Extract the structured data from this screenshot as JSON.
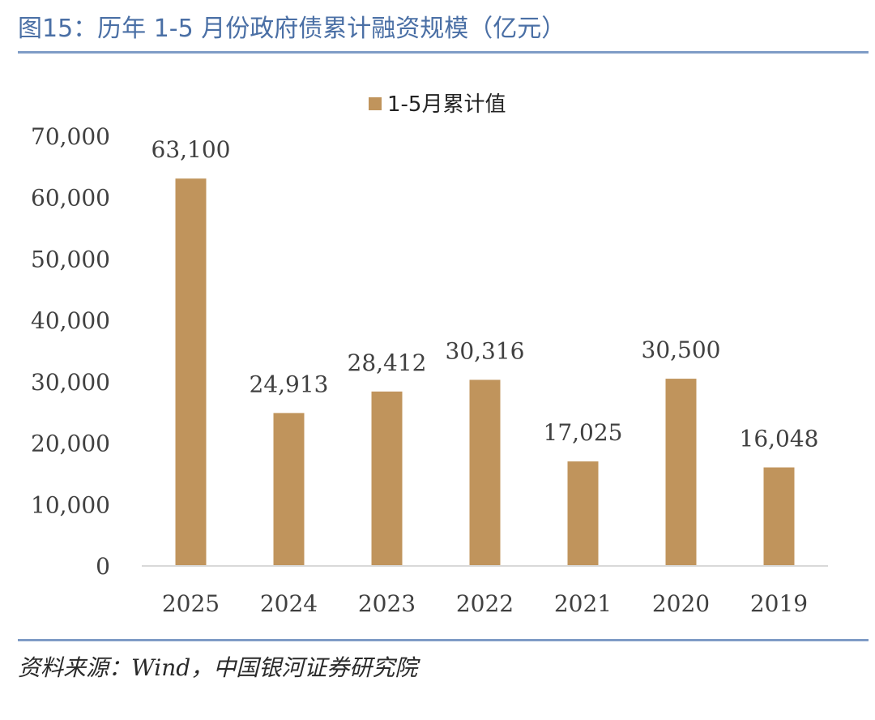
{
  "header": {
    "title": "图15：历年 1-5 月份政府债累计融资规模（亿元）"
  },
  "footer": {
    "source": "资料来源：Wind，中国银河证券研究院"
  },
  "colors": {
    "bar": "#c0945c",
    "axis": "#d9d9d9",
    "rule": "#7f9cc6"
  },
  "chart_data": {
    "type": "bar",
    "title": "",
    "categories": [
      "2025",
      "2024",
      "2023",
      "2022",
      "2021",
      "2020",
      "2019"
    ],
    "series": [
      {
        "name": "1-5月累计值",
        "values": [
          63100,
          24913,
          28412,
          30316,
          17025,
          30500,
          16048
        ]
      }
    ],
    "data_labels": [
      "63,100",
      "24,913",
      "28,412",
      "30,316",
      "17,025",
      "30,500",
      "16,048"
    ],
    "y_ticks": [
      "0",
      "10,000",
      "20,000",
      "30,000",
      "40,000",
      "50,000",
      "60,000",
      "70,000"
    ],
    "ylim": [
      0,
      70000
    ],
    "xlabel": "",
    "ylabel": "",
    "grid": false,
    "legend": "top-center"
  }
}
